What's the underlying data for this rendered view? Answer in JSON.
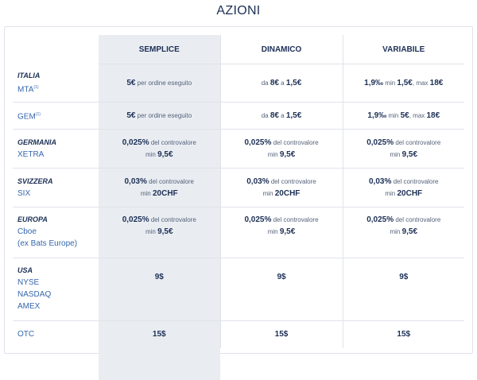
{
  "title": "AZIONI",
  "columns": [
    "SEMPLICE",
    "DINAMICO",
    "VARIABILE"
  ],
  "rows": {
    "italia_mta": {
      "country": "ITALIA",
      "exchange": "MTA",
      "note": "(1)",
      "s": {
        "b1": "5€",
        "t1": " per ordine eseguito"
      },
      "d": {
        "t1": "da ",
        "b1": "8€",
        "t2": " a ",
        "b2": "1,5€"
      },
      "v": {
        "b1": "1,9‰",
        "t1": "  min ",
        "b2": "1,5€",
        "t2": ", max ",
        "b3": "18€"
      }
    },
    "italia_gem": {
      "exchange": "GEM",
      "note": "(1)",
      "s": {
        "b1": "5€",
        "t1": " per ordine eseguito"
      },
      "d": {
        "t1": "da ",
        "b1": "8€",
        "t2": " a ",
        "b2": "1,5€"
      },
      "v": {
        "b1": "1,9‰",
        "t1": "  min ",
        "b2": "5€",
        "t2": ", max ",
        "b3": "18€"
      }
    },
    "germania": {
      "country": "GERMANIA",
      "exchange": "XETRA",
      "cell": {
        "b1": "0,025%",
        "t1": " del controvalore",
        "t2": "min ",
        "b2": "9,5€"
      }
    },
    "svizzera": {
      "country": "SVIZZERA",
      "exchange": "SIX",
      "cell": {
        "b1": "0,03%",
        "t1": " del controvalore",
        "t2": "min ",
        "b2": "20CHF"
      }
    },
    "europa": {
      "country": "EUROPA",
      "exchange": "Cboe",
      "exchange2": "(ex Bats Europe)",
      "cell": {
        "b1": "0,025%",
        "t1": " del controvalore",
        "t2": "min ",
        "b2": "9,5€"
      }
    },
    "usa": {
      "country": "USA",
      "exchanges": [
        "NYSE",
        "NASDAQ",
        "AMEX"
      ],
      "cell": "9$"
    },
    "otc": {
      "exchange": "OTC",
      "cell": "15$"
    }
  }
}
